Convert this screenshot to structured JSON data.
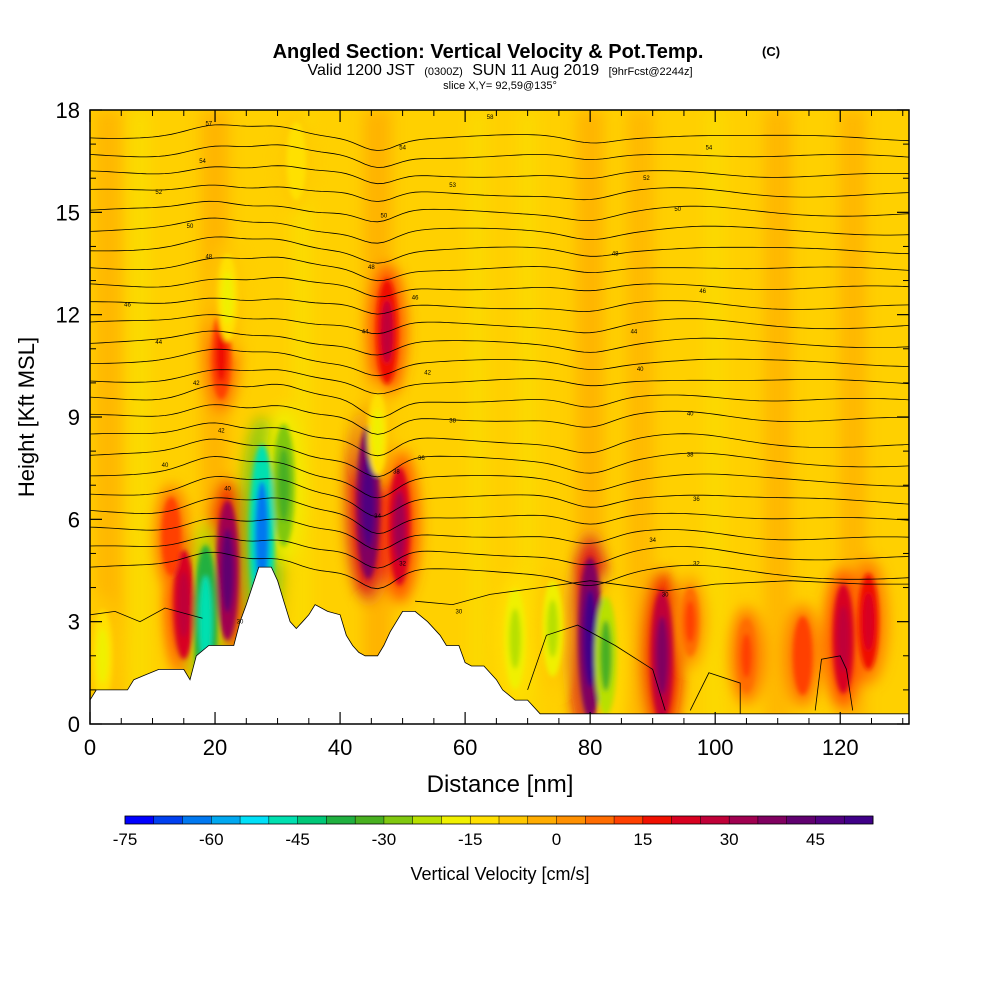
{
  "title": {
    "main": "Angled Section: Vertical Velocity & Pot.Temp.",
    "main_units": "(C)",
    "valid_prefix": "Valid 1200 JST",
    "valid_zulu": "(0300Z)",
    "valid_date": "SUN 11 Aug 2019",
    "forecast": "[9hrFcst@2244z]",
    "slice": "slice X,Y= 92,59@135°"
  },
  "chart_data": {
    "type": "heatmap",
    "xlabel": "Distance [nm]",
    "ylabel": "Height [Kft MSL]",
    "xlim": [
      0,
      131
    ],
    "ylim": [
      0,
      18
    ],
    "x_ticks": [
      0,
      20,
      40,
      60,
      80,
      100,
      120
    ],
    "y_ticks": [
      0,
      3,
      6,
      9,
      12,
      15,
      18
    ],
    "colorbar": {
      "label": "Vertical Velocity [cm/s]",
      "min": -75,
      "max": 55,
      "step": 5,
      "tick_values": [
        -75,
        -60,
        -45,
        -30,
        -15,
        0,
        15,
        30,
        45
      ],
      "colors": [
        "#0000ff",
        "#0040f0",
        "#0078f0",
        "#00a8f0",
        "#00e0f8",
        "#00e0b0",
        "#00c878",
        "#20b040",
        "#48b020",
        "#80c810",
        "#b8e000",
        "#f0f000",
        "#ffe000",
        "#ffc800",
        "#ffac00",
        "#ff9000",
        "#ff6c00",
        "#ff4000",
        "#f01000",
        "#d80020",
        "#c00038",
        "#a00050",
        "#800060",
        "#600070",
        "#500080",
        "#400088"
      ]
    },
    "terrain": [
      [
        0,
        0.7
      ],
      [
        1,
        1
      ],
      [
        6,
        1
      ],
      [
        7,
        1.3
      ],
      [
        11,
        1.6
      ],
      [
        15,
        1.6
      ],
      [
        16,
        1.3
      ],
      [
        17,
        2
      ],
      [
        19,
        2.3
      ],
      [
        23,
        2.3
      ],
      [
        24,
        3
      ],
      [
        25,
        3.5
      ],
      [
        27,
        4.6
      ],
      [
        29,
        4.6
      ],
      [
        30,
        4.2
      ],
      [
        31,
        3.6
      ],
      [
        32,
        3
      ],
      [
        33,
        2.8
      ],
      [
        34,
        3
      ],
      [
        35,
        3.2
      ],
      [
        36,
        3.5
      ],
      [
        38,
        3.3
      ],
      [
        40,
        3.2
      ],
      [
        41,
        2.6
      ],
      [
        42,
        2.3
      ],
      [
        43,
        2.1
      ],
      [
        44,
        2
      ],
      [
        46,
        2
      ],
      [
        47,
        2.3
      ],
      [
        48,
        2.7
      ],
      [
        50,
        3.3
      ],
      [
        52,
        3.3
      ],
      [
        54,
        3
      ],
      [
        56,
        2.6
      ],
      [
        57,
        2.3
      ],
      [
        59,
        2.3
      ],
      [
        60,
        1.8
      ],
      [
        61,
        1.7
      ],
      [
        63,
        1.7
      ],
      [
        65,
        1.3
      ],
      [
        66,
        1
      ],
      [
        68,
        0.7
      ],
      [
        70,
        0.7
      ],
      [
        72,
        0.3
      ],
      [
        131,
        0.3
      ]
    ],
    "updrafts": [
      {
        "x": 15,
        "y": 3.5,
        "v": 28
      },
      {
        "x": 22,
        "y": 4.5,
        "v": 42
      },
      {
        "x": 44.5,
        "y": 6.5,
        "v": 48
      },
      {
        "x": 47.5,
        "y": 11.5,
        "v": 26
      },
      {
        "x": 49.5,
        "y": 5.8,
        "v": 32
      },
      {
        "x": 21,
        "y": 10.8,
        "v": 18
      },
      {
        "x": 80,
        "y": 2.5,
        "v": 52
      },
      {
        "x": 91.5,
        "y": 2,
        "v": 38
      },
      {
        "x": 120.5,
        "y": 2.5,
        "v": 28
      },
      {
        "x": 124.5,
        "y": 3,
        "v": 22
      },
      {
        "x": 105,
        "y": 2,
        "v": 12
      },
      {
        "x": 114,
        "y": 2,
        "v": 14
      },
      {
        "x": 13,
        "y": 5.5,
        "v": 14
      },
      {
        "x": 96,
        "y": 3,
        "v": 10
      }
    ],
    "downdrafts": [
      {
        "x": 18.5,
        "y": 3,
        "v": -48
      },
      {
        "x": 27.5,
        "y": 5.5,
        "v": -62
      },
      {
        "x": 31,
        "y": 7,
        "v": -34
      },
      {
        "x": 82.5,
        "y": 2,
        "v": -32
      },
      {
        "x": 68,
        "y": 2.5,
        "v": -24
      },
      {
        "x": 74,
        "y": 2.8,
        "v": -22
      },
      {
        "x": 22,
        "y": 12.5,
        "v": -18
      },
      {
        "x": 46,
        "y": 8.5,
        "v": -16
      },
      {
        "x": 2,
        "y": 2,
        "v": -20
      },
      {
        "x": 33,
        "y": 16.5,
        "v": -14
      }
    ],
    "isentrope_labels": [
      {
        "x": 19,
        "y": 17.6,
        "text": "57"
      },
      {
        "x": 64,
        "y": 17.8,
        "text": "58"
      },
      {
        "x": 18,
        "y": 16.5,
        "text": "54"
      },
      {
        "x": 50,
        "y": 16.9,
        "text": "54"
      },
      {
        "x": 99,
        "y": 16.9,
        "text": "54"
      },
      {
        "x": 11,
        "y": 15.6,
        "text": "52"
      },
      {
        "x": 58,
        "y": 15.8,
        "text": "53"
      },
      {
        "x": 89,
        "y": 16,
        "text": "52"
      },
      {
        "x": 16,
        "y": 14.6,
        "text": "50"
      },
      {
        "x": 47,
        "y": 14.9,
        "text": "50"
      },
      {
        "x": 94,
        "y": 15.1,
        "text": "50"
      },
      {
        "x": 19,
        "y": 13.7,
        "text": "48"
      },
      {
        "x": 45,
        "y": 13.4,
        "text": "48"
      },
      {
        "x": 84,
        "y": 13.8,
        "text": "48"
      },
      {
        "x": 6,
        "y": 12.3,
        "text": "46"
      },
      {
        "x": 52,
        "y": 12.5,
        "text": "46"
      },
      {
        "x": 98,
        "y": 12.7,
        "text": "46"
      },
      {
        "x": 11,
        "y": 11.2,
        "text": "44"
      },
      {
        "x": 44,
        "y": 11.5,
        "text": "44"
      },
      {
        "x": 87,
        "y": 11.5,
        "text": "44"
      },
      {
        "x": 17,
        "y": 10,
        "text": "42"
      },
      {
        "x": 54,
        "y": 10.3,
        "text": "42"
      },
      {
        "x": 88,
        "y": 10.4,
        "text": "40"
      },
      {
        "x": 58,
        "y": 8.9,
        "text": "38"
      },
      {
        "x": 96,
        "y": 9.1,
        "text": "40"
      },
      {
        "x": 21,
        "y": 8.6,
        "text": "42"
      },
      {
        "x": 53,
        "y": 7.8,
        "text": "36"
      },
      {
        "x": 96,
        "y": 7.9,
        "text": "38"
      },
      {
        "x": 12,
        "y": 7.6,
        "text": "40"
      },
      {
        "x": 22,
        "y": 6.9,
        "text": "40"
      },
      {
        "x": 49,
        "y": 7.4,
        "text": "38"
      },
      {
        "x": 97,
        "y": 6.6,
        "text": "36"
      },
      {
        "x": 46,
        "y": 6.1,
        "text": "34"
      },
      {
        "x": 90,
        "y": 5.4,
        "text": "34"
      },
      {
        "x": 50,
        "y": 4.7,
        "text": "32"
      },
      {
        "x": 97,
        "y": 4.7,
        "text": "32"
      },
      {
        "x": 24,
        "y": 3,
        "text": "30"
      },
      {
        "x": 59,
        "y": 3.3,
        "text": "30"
      },
      {
        "x": 92,
        "y": 3.8,
        "text": "30"
      }
    ]
  }
}
